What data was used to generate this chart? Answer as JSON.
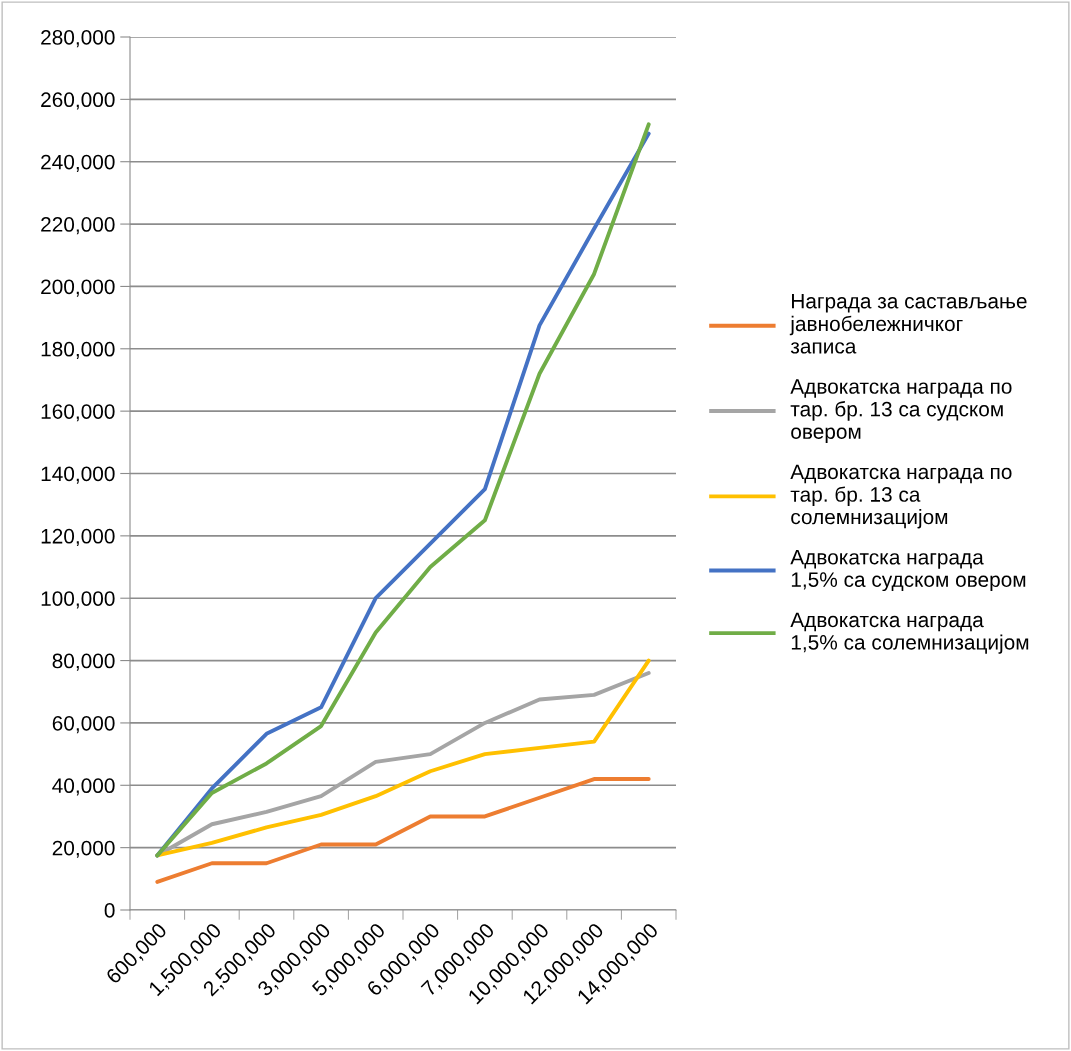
{
  "chart_data": {
    "type": "line",
    "categories": [
      "600,000",
      "1,500,000",
      "2,500,000",
      "3,000,000",
      "5,000,000",
      "6,000,000",
      "7,000,000",
      "10,000,000",
      "12,000,000",
      "14,000,000"
    ],
    "ylim": [
      0,
      280000
    ],
    "yticks": [
      {
        "value": 0,
        "label": "0"
      },
      {
        "value": 20000,
        "label": "20,000"
      },
      {
        "value": 40000,
        "label": "40,000"
      },
      {
        "value": 60000,
        "label": "60,000"
      },
      {
        "value": 80000,
        "label": "80,000"
      },
      {
        "value": 100000,
        "label": "100,000"
      },
      {
        "value": 120000,
        "label": "120,000"
      },
      {
        "value": 140000,
        "label": "140,000"
      },
      {
        "value": 160000,
        "label": "160,000"
      },
      {
        "value": 180000,
        "label": "180,000"
      },
      {
        "value": 200000,
        "label": "200,000"
      },
      {
        "value": 220000,
        "label": "220,000"
      },
      {
        "value": 240000,
        "label": "240,000"
      },
      {
        "value": 260000,
        "label": "260,000"
      },
      {
        "value": 280000,
        "label": "280,000"
      }
    ],
    "grid": "y",
    "legend": "right",
    "marker": "none",
    "line_style": "solid",
    "series": [
      {
        "name": "Награда за састављање\nјавнобележничког\nзаписа",
        "color": "#ed7d31",
        "values": [
          9000,
          15000,
          15000,
          21000,
          21000,
          30000,
          30000,
          36000,
          42000,
          42000
        ]
      },
      {
        "name": "Адвокатска награда по\nтар. бр. 13 са судском\nовером",
        "color": "#a5a5a5",
        "values": [
          17500,
          27500,
          31500,
          36500,
          47500,
          50000,
          60000,
          67500,
          69000,
          76000
        ]
      },
      {
        "name": "Адвокатска награда по\nтар. бр. 13 са\nсолемнизацијом",
        "color": "#ffc000",
        "values": [
          17500,
          21500,
          26500,
          30500,
          36500,
          44500,
          50000,
          52000,
          54000,
          80000
        ]
      },
      {
        "name": "Адвокатска награда\n1,5% са судском овером",
        "color": "#4472c4",
        "values": [
          17500,
          39000,
          56500,
          65000,
          100000,
          117500,
          135000,
          187500,
          218500,
          249000
        ]
      },
      {
        "name": "Адвокатска награда\n1,5% са солемнизацијом",
        "color": "#70ad47",
        "values": [
          17500,
          37500,
          47000,
          59000,
          89000,
          110000,
          125000,
          172000,
          204000,
          252000
        ]
      }
    ]
  }
}
